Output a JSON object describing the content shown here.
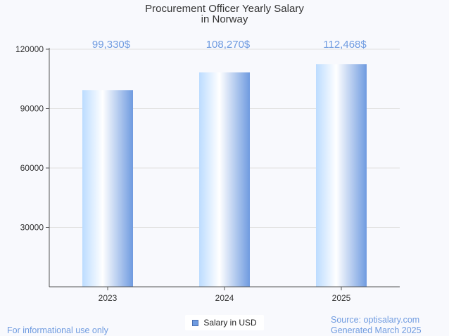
{
  "chart_data": {
    "type": "bar",
    "title_lines": [
      "Procurement Officer Yearly Salary",
      "in Norway"
    ],
    "categories": [
      "2023",
      "2024",
      "2025"
    ],
    "series": [
      {
        "name": "Salary in USD",
        "values": [
          99330,
          108270,
          112468
        ]
      }
    ],
    "data_labels": [
      "99,330$",
      "108,270$",
      "112,468$"
    ],
    "y_ticks": [
      30000,
      60000,
      90000,
      120000
    ],
    "ylim": [
      0,
      120000
    ],
    "grid": true,
    "legend_position": "bottom",
    "colors": {
      "bar_light": "#ffffff",
      "bar_mid": "#bcdcff",
      "bar_dark": "#6f9be0",
      "data_label": "#6f9be0",
      "grid": "#e0e0e0",
      "axis": "#555555"
    }
  },
  "footer": {
    "disclaimer": "For informational use only",
    "source": "Source: optisalary.com",
    "generated": "Generated March 2025"
  },
  "legend": {
    "label": "Salary in USD"
  }
}
